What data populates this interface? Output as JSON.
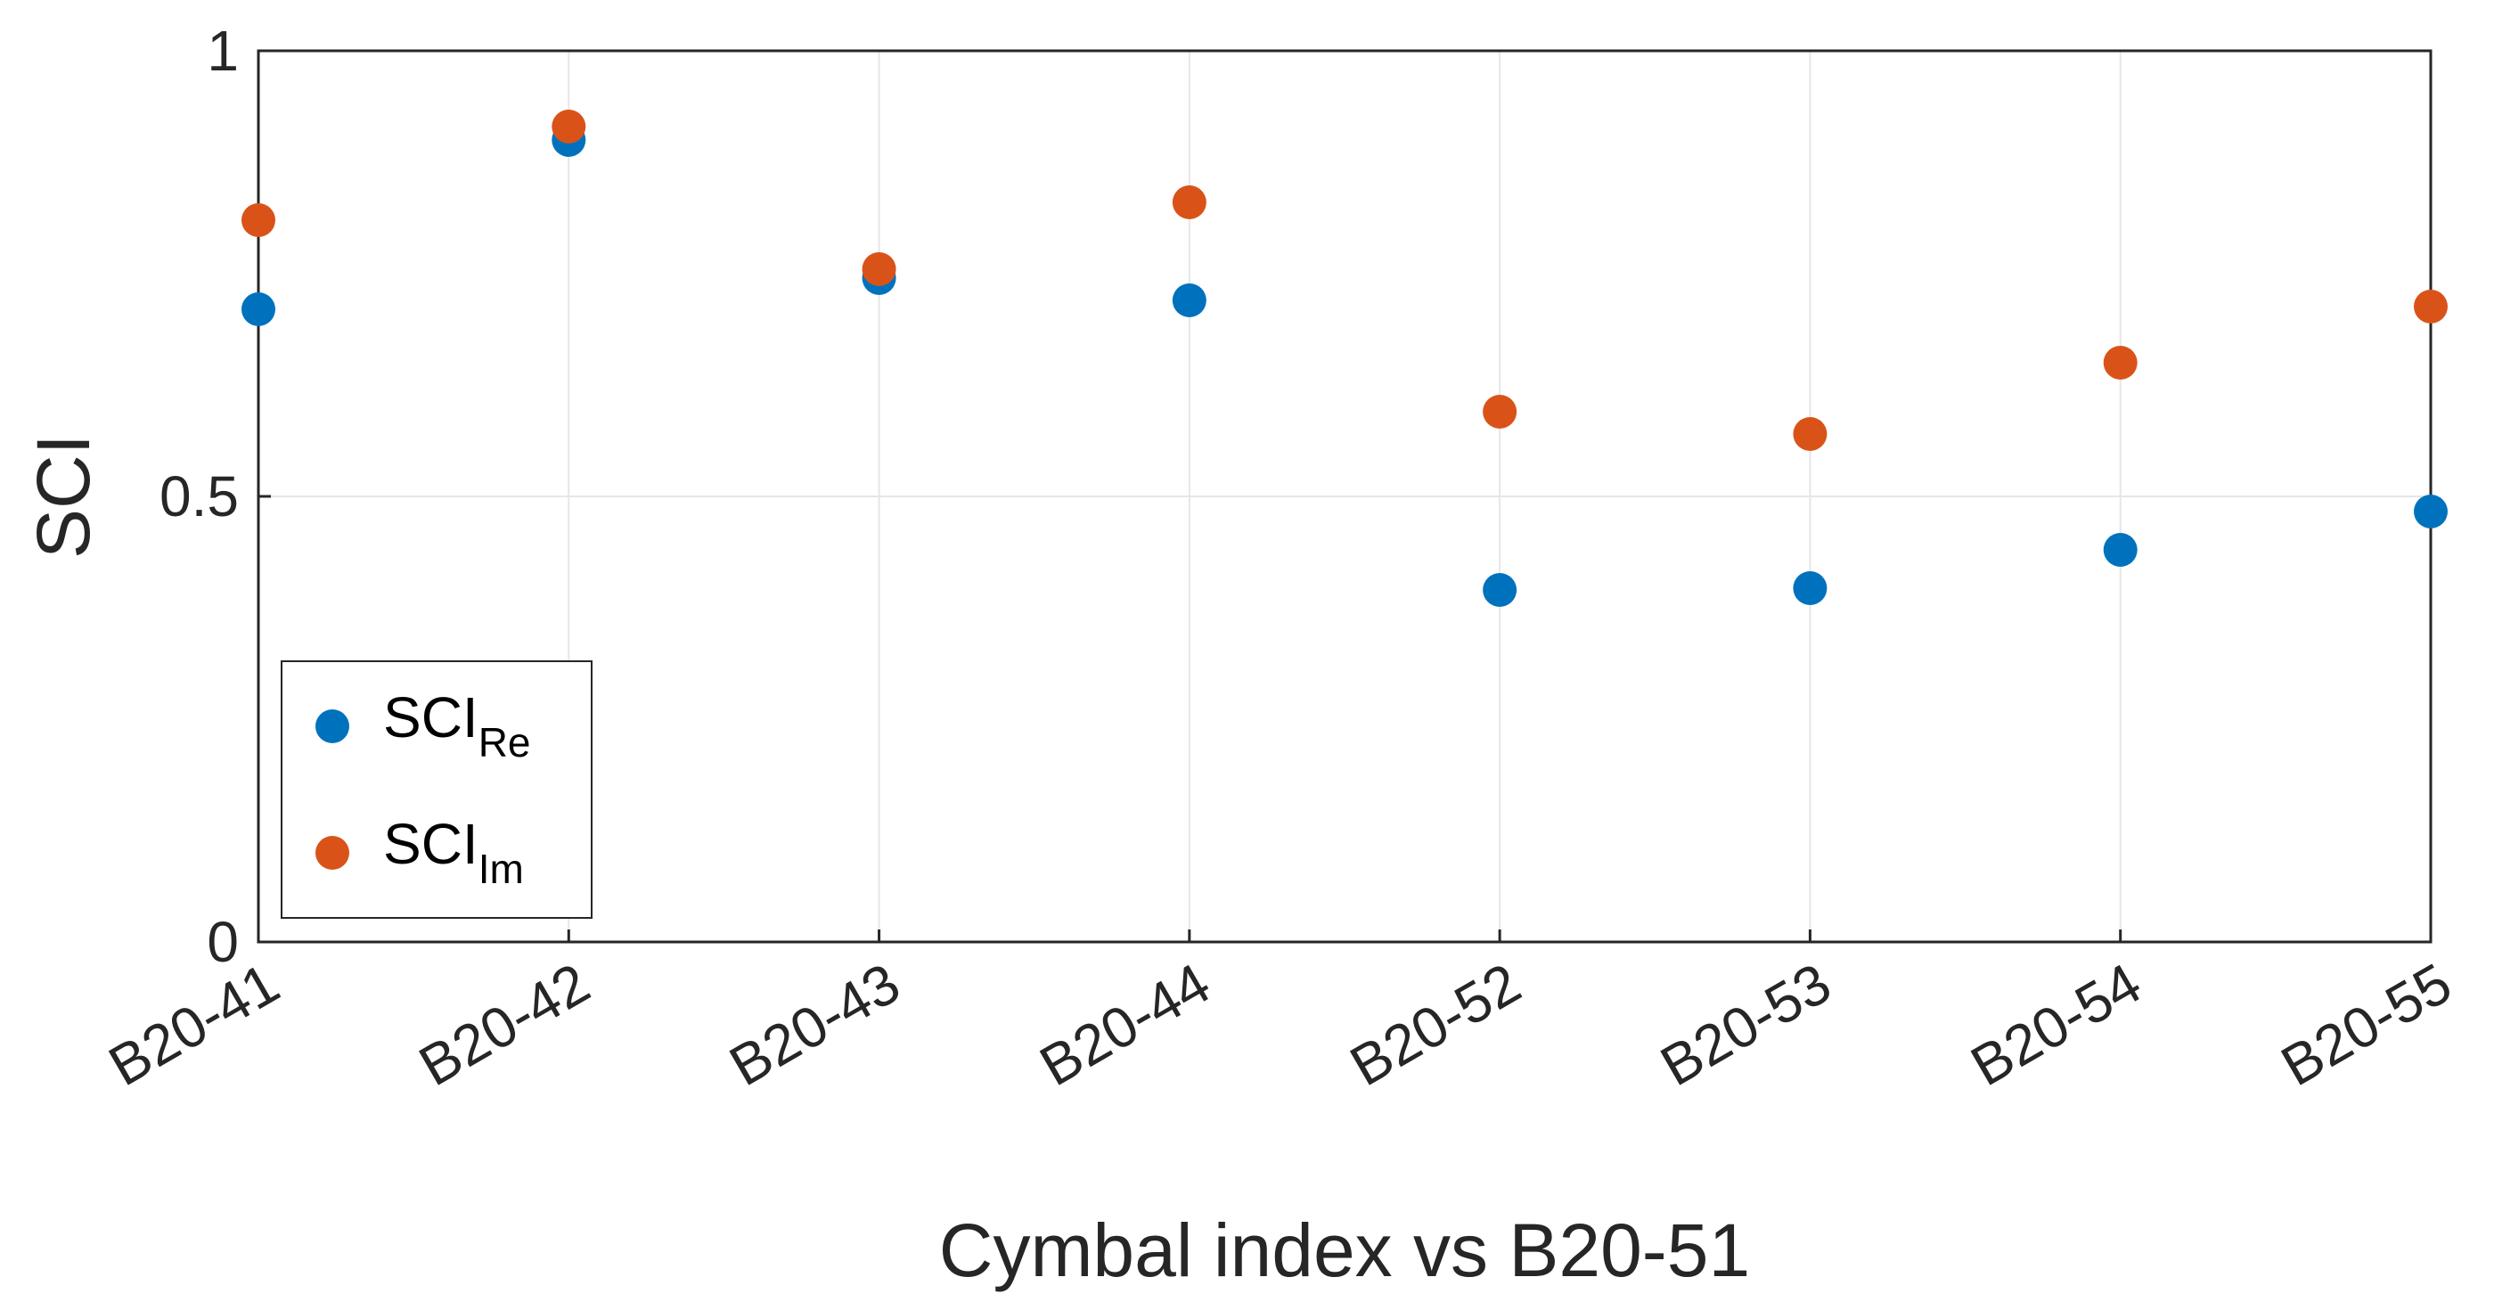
{
  "chart_data": {
    "type": "scatter",
    "title": "",
    "xlabel": "Cymbal index vs B20-51",
    "ylabel": "SCI",
    "categories": [
      "B20-41",
      "B20-42",
      "B20-43",
      "B20-44",
      "B20-52",
      "B20-53",
      "B20-54",
      "B20-55"
    ],
    "ylim": [
      0,
      1
    ],
    "yticks": [
      0,
      0.5,
      1
    ],
    "ytick_labels": [
      "0",
      "0.5",
      "1"
    ],
    "grid": true,
    "legend_position": "bottom-left",
    "series": [
      {
        "name": "SCI",
        "subscript": "Re",
        "color": "#0072BD",
        "values": [
          0.71,
          0.9,
          0.745,
          0.72,
          0.395,
          0.397,
          0.44,
          0.483
        ]
      },
      {
        "name": "SCI",
        "subscript": "Im",
        "color": "#D95319",
        "values": [
          0.81,
          0.915,
          0.755,
          0.83,
          0.595,
          0.57,
          0.65,
          0.713
        ]
      }
    ]
  }
}
